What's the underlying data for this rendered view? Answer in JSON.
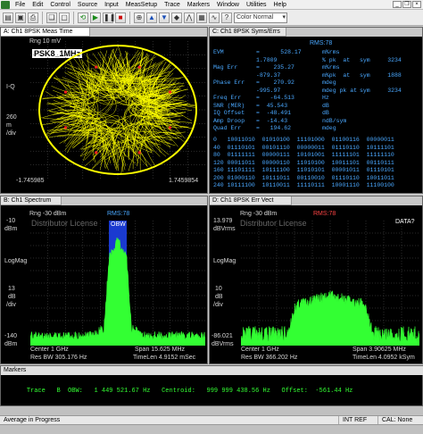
{
  "menu": [
    "File",
    "Edit",
    "Control",
    "Source",
    "Input",
    "MeasSetup",
    "Trace",
    "Markers",
    "Window",
    "Utilities",
    "Help"
  ],
  "toolbar": {
    "color_mode": "Color Normal"
  },
  "pane_a": {
    "title": "A: Ch1 8PSK Meas Time",
    "rng": "Rng 10 mV",
    "tag": "PSK8_1MHz",
    "y_label_iq": "I-Q",
    "y_scale_value": "260",
    "y_scale_unit": "m",
    "y_scale_div": "/div",
    "x_left": "-1.745985",
    "x_right": "1.7459854"
  },
  "pane_c": {
    "title": "C: Ch1 8PSK Syms/Errs",
    "header": "RMS:78",
    "metrics": [
      {
        "name": "EVM",
        "value": "=      528.17",
        "unit": "m%rms",
        "extra": ""
      },
      {
        "name": "",
        "value": "1.7809",
        "unit": "% pk  at",
        "extra": "sym     3234"
      },
      {
        "name": "Mag Err",
        "value": "=    235.27",
        "unit": "m%rms",
        "extra": ""
      },
      {
        "name": "",
        "value": "-879.37",
        "unit": "m%pk  at",
        "extra": "sym     1888"
      },
      {
        "name": "Phase Err",
        "value": "=    270.92",
        "unit": "mdeg",
        "extra": ""
      },
      {
        "name": "",
        "value": "-995.97",
        "unit": "mdeg pk at",
        "extra": "sym     3234"
      },
      {
        "name": "Freq Err",
        "value": "=   -64.513",
        "unit": "Hz",
        "extra": ""
      },
      {
        "name": "SNR (MER)",
        "value": "=  45.543",
        "unit": "dB",
        "extra": ""
      },
      {
        "name": "IQ Offset",
        "value": "=  -48.491",
        "unit": "dB",
        "extra": ""
      },
      {
        "name": "Amp Droop",
        "value": "=  -14.43",
        "unit": "ndB/sym",
        "extra": ""
      },
      {
        "name": "Quad Err",
        "value": "=   194.62",
        "unit": "mdeg",
        "extra": ""
      }
    ],
    "symbols": [
      "0   10011010  01010100  11101000  01100116  00000011",
      "40  01110101  00101110  00000011  01110110  10111101",
      "80  01111111  00000111  10101001  11111101  11111110",
      "120 00011011  00000110  11010100  10011101  00110111",
      "160 11101111  10111100  11010101  00001011  01110101",
      "200 01000110  10111011  00110010  01110110  10011011",
      "240 10111100  10110011  11110111  10001110  11100100"
    ]
  },
  "pane_b": {
    "title": "B: Ch1 Spectrum",
    "rng": "Rng -30 dBm",
    "watermark": "Distributor License",
    "rms": "RMS:78",
    "obw": "OBW",
    "y_top": "-10",
    "y_top_unit": "dBm",
    "y_mode": "LogMag",
    "y_scale": "13",
    "y_scale_unit": "dB",
    "y_scale_div": "/div",
    "y_bottom": "-140",
    "y_bottom_unit": "dBm",
    "center": "Center 1 GHz",
    "span": "Span 15.625 MHz",
    "res_bw": "Res BW 305.176  Hz",
    "time_len": "TimeLen 4.9152 mSec"
  },
  "pane_d": {
    "title": "D: Ch1 8PSK Err Vect Spectrum",
    "rng": "Rng -30 dBm",
    "watermark": "Distributor License",
    "rms": "RMS:78",
    "data_q": "DATA?",
    "y_top": "13.979",
    "y_top_unit": "dBVrms",
    "y_mode": "LogMag",
    "y_scale": "10",
    "y_scale_unit": "dB",
    "y_scale_div": "/div",
    "y_bottom": "-86.021",
    "y_bottom_unit": "dBVrms",
    "center": "Center 1 GHz",
    "span": "Span 3.90625 MHz",
    "res_bw": "Res BW 366.202  Hz",
    "time_len": "TimeLen 4.0952 kSym"
  },
  "markers": {
    "title": "Markers",
    "trace_label": "Trace",
    "trace_id": "B",
    "obw_label": "OBW:",
    "obw_value": "1 449 521.67 Hz",
    "centroid_label": "Centroid:",
    "centroid_value": "999 999 438.56 Hz",
    "offset_label": "Offset:",
    "offset_value": "-561.44 Hz"
  },
  "status": {
    "left": "Average in Progress",
    "int_ref": "INT REF",
    "cal": "CAL: None"
  },
  "colors": {
    "trace_green": "#33ff33",
    "constellation_yellow": "#ffff00",
    "obw_band": "#1a3ad0",
    "symbol_blue": "#4aa8ff",
    "marker_green": "#33ff33"
  }
}
